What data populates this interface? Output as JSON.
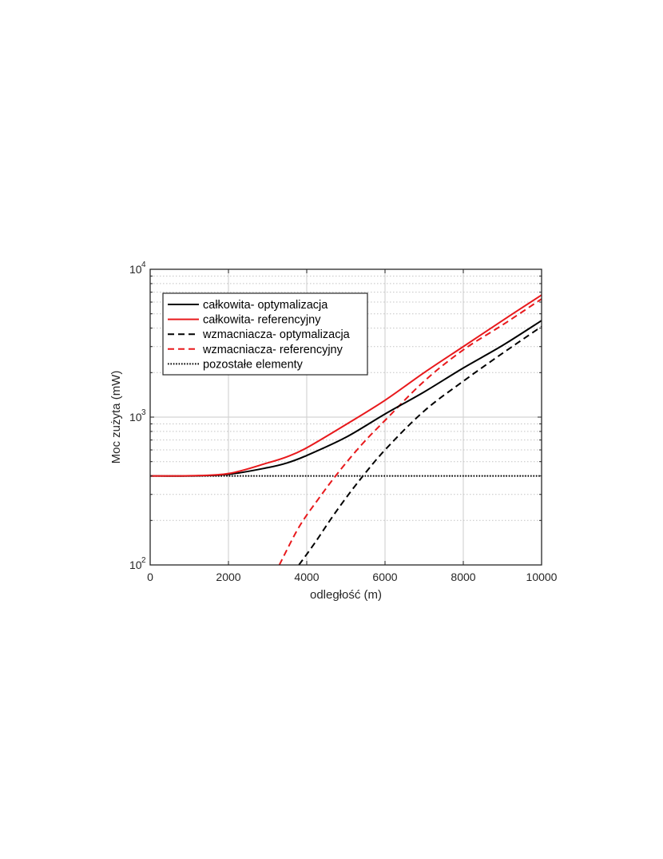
{
  "chart_data": {
    "type": "line",
    "xlabel": "odległość (m)",
    "ylabel": "Moc zużyta (mW)",
    "xlim": [
      0,
      10000
    ],
    "ylim": [
      100,
      10000
    ],
    "yscale": "log",
    "grid": true,
    "legend_position": "top-left",
    "x_ticks": [
      0,
      2000,
      4000,
      6000,
      8000,
      10000
    ],
    "x_tick_labels": [
      "0",
      "2000",
      "4000",
      "6000",
      "8000",
      "10000"
    ],
    "y_ticks": [
      100,
      1000,
      10000
    ],
    "y_tick_bases": [
      "10",
      "10",
      "10"
    ],
    "y_tick_exponents": [
      "2",
      "3",
      "4"
    ],
    "series": [
      {
        "name": "całkowita- optymalizacja",
        "color": "#000000",
        "dash": "solid",
        "x": [
          0,
          1000,
          2000,
          3000,
          3500,
          4000,
          5000,
          6000,
          7000,
          8000,
          9000,
          10000
        ],
        "y": [
          400,
          400,
          410,
          455,
          490,
          550,
          730,
          1050,
          1480,
          2150,
          3050,
          4500
        ]
      },
      {
        "name": "całkowita- referencyjny",
        "color": "#e8191c",
        "dash": "solid",
        "x": [
          0,
          1000,
          2000,
          3000,
          3500,
          4000,
          5000,
          6000,
          7000,
          8000,
          9000,
          10000
        ],
        "y": [
          400,
          401,
          415,
          490,
          540,
          620,
          890,
          1300,
          2000,
          3000,
          4500,
          6700
        ]
      },
      {
        "name": "wzmacniacza- optymalizacja",
        "color": "#000000",
        "dash": "dashed",
        "x": [
          3800,
          4200,
          4700,
          5300,
          6000,
          7000,
          8000,
          9000,
          10000
        ],
        "y": [
          100,
          140,
          220,
          360,
          600,
          1100,
          1750,
          2700,
          4100
        ]
      },
      {
        "name": "wzmacniacza- referencyjny",
        "color": "#e8191c",
        "dash": "dashed",
        "x": [
          3300,
          3800,
          4300,
          4800,
          5400,
          6000,
          7000,
          8000,
          9000,
          10000
        ],
        "y": [
          100,
          180,
          280,
          420,
          650,
          950,
          1750,
          2850,
          4200,
          6300
        ]
      },
      {
        "name": "pozostałe elementy",
        "color": "#000000",
        "dash": "dotted",
        "x": [
          0,
          10000
        ],
        "y": [
          400,
          400
        ]
      }
    ]
  }
}
